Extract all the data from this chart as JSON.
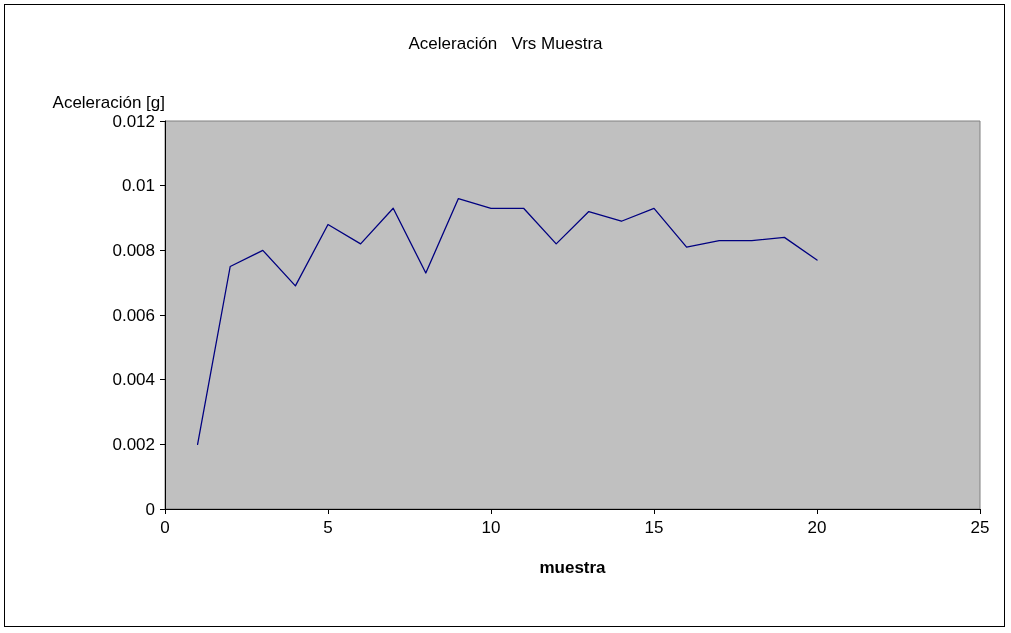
{
  "chart_data": {
    "type": "line",
    "title": "Aceleración   Vrs Muestra",
    "xlabel": "muestra",
    "ylabel": "Aceleración [g]",
    "x": [
      1,
      2,
      3,
      4,
      5,
      6,
      7,
      8,
      9,
      10,
      11,
      12,
      13,
      14,
      15,
      16,
      17,
      18,
      19,
      20
    ],
    "series": [
      {
        "color": "#000080",
        "values": [
          0.002,
          0.0075,
          0.008,
          0.0069,
          0.0088,
          0.0082,
          0.0093,
          0.0073,
          0.0096,
          0.0093,
          0.0093,
          0.0082,
          0.0092,
          0.0089,
          0.0093,
          0.0081,
          0.0083,
          0.0083,
          0.0084,
          0.0077
        ]
      }
    ],
    "xlim": [
      0,
      25
    ],
    "xticks": [
      0,
      5,
      10,
      15,
      20,
      25
    ],
    "ylim": [
      0,
      0.012
    ],
    "yticks": [
      0,
      0.002,
      0.004,
      0.006,
      0.008,
      0.01,
      0.012
    ],
    "grid": false,
    "marker": "none",
    "line_style": "solid"
  }
}
